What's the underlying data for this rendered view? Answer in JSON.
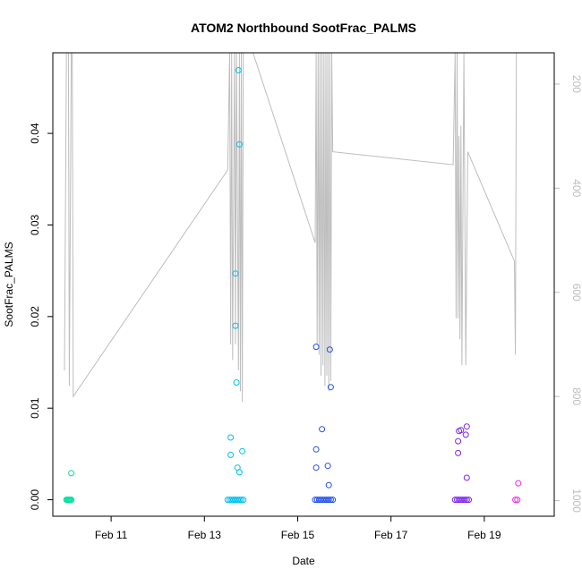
{
  "chart_data": {
    "type": "scatter",
    "title": "ATOM2 Northbound SootFrac_PALMS",
    "xlabel": "Date",
    "ylabel": "SootFrac_PALMS",
    "xlim": [
      "2017-02-09T18:00",
      "2017-02-20T12:00"
    ],
    "ylim": [
      -0.0018,
      0.0488
    ],
    "x_ticks": [
      {
        "date": "2017-02-11T00:00",
        "label": "Feb 11"
      },
      {
        "date": "2017-02-13T00:00",
        "label": "Feb 13"
      },
      {
        "date": "2017-02-15T00:00",
        "label": "Feb 15"
      },
      {
        "date": "2017-02-17T00:00",
        "label": "Feb 17"
      },
      {
        "date": "2017-02-19T00:00",
        "label": "Feb 19"
      }
    ],
    "y_ticks": [
      {
        "value": 0.0,
        "label": "0.00"
      },
      {
        "value": 0.01,
        "label": "0.01"
      },
      {
        "value": 0.02,
        "label": "0.02"
      },
      {
        "value": 0.03,
        "label": "0.03"
      },
      {
        "value": 0.04,
        "label": "0.04"
      }
    ],
    "right_axis": {
      "lim": [
        1030,
        140
      ],
      "ticks": [
        {
          "value": 200,
          "label": "200"
        },
        {
          "value": 400,
          "label": "400"
        },
        {
          "value": 600,
          "label": "600"
        },
        {
          "value": 800,
          "label": "800"
        },
        {
          "value": 1000,
          "label": "1000"
        }
      ],
      "color": "#bdbdbd"
    },
    "grid": false,
    "series": [
      {
        "color": "#00e0a0",
        "points": [
          [
            "2017-02-10T01:00",
            0.0
          ],
          [
            "2017-02-10T01:30",
            0.0
          ],
          [
            "2017-02-10T02:00",
            0.0
          ],
          [
            "2017-02-10T02:30",
            0.0
          ],
          [
            "2017-02-10T03:00",
            0.0
          ],
          [
            "2017-02-10T03:30",
            0.0
          ],
          [
            "2017-02-10T03:30",
            0.0029
          ]
        ]
      },
      {
        "color": "#00bfe8",
        "points": [
          [
            "2017-02-13T12:00",
            0.0
          ],
          [
            "2017-02-13T13:00",
            0.0
          ],
          [
            "2017-02-13T14:00",
            0.0
          ],
          [
            "2017-02-13T15:00",
            0.0
          ],
          [
            "2017-02-13T16:00",
            0.0
          ],
          [
            "2017-02-13T17:00",
            0.0
          ],
          [
            "2017-02-13T18:00",
            0.0
          ],
          [
            "2017-02-13T19:00",
            0.0
          ],
          [
            "2017-02-13T20:00",
            0.0
          ],
          [
            "2017-02-13T13:30",
            0.0068
          ],
          [
            "2017-02-13T13:30",
            0.0049
          ],
          [
            "2017-02-13T19:30",
            0.0053
          ],
          [
            "2017-02-13T17:00",
            0.0035
          ],
          [
            "2017-02-13T18:00",
            0.003
          ],
          [
            "2017-02-13T16:30",
            0.0128
          ],
          [
            "2017-02-13T16:00",
            0.019
          ],
          [
            "2017-02-13T16:00",
            0.0247
          ],
          [
            "2017-02-13T18:00",
            0.0388
          ],
          [
            "2017-02-13T17:30",
            0.0469
          ]
        ]
      },
      {
        "color": "#2050e8",
        "points": [
          [
            "2017-02-15T09:00",
            0.0
          ],
          [
            "2017-02-15T10:00",
            0.0
          ],
          [
            "2017-02-15T11:00",
            0.0
          ],
          [
            "2017-02-15T12:00",
            0.0
          ],
          [
            "2017-02-15T13:00",
            0.0
          ],
          [
            "2017-02-15T14:00",
            0.0
          ],
          [
            "2017-02-15T15:00",
            0.0
          ],
          [
            "2017-02-15T16:00",
            0.0
          ],
          [
            "2017-02-15T17:00",
            0.0
          ],
          [
            "2017-02-15T18:00",
            0.0
          ],
          [
            "2017-02-15T09:30",
            0.0167
          ],
          [
            "2017-02-15T16:30",
            0.0164
          ],
          [
            "2017-02-15T17:00",
            0.0123
          ],
          [
            "2017-02-15T12:30",
            0.0077
          ],
          [
            "2017-02-15T09:30",
            0.0055
          ],
          [
            "2017-02-15T09:30",
            0.0035
          ],
          [
            "2017-02-15T15:30",
            0.0037
          ],
          [
            "2017-02-15T16:00",
            0.0016
          ]
        ]
      },
      {
        "color": "#7a28e8",
        "points": [
          [
            "2017-02-18T09:00",
            0.0
          ],
          [
            "2017-02-18T10:00",
            0.0
          ],
          [
            "2017-02-18T11:00",
            0.0
          ],
          [
            "2017-02-18T12:00",
            0.0
          ],
          [
            "2017-02-18T13:00",
            0.0
          ],
          [
            "2017-02-18T14:00",
            0.0
          ],
          [
            "2017-02-18T15:00",
            0.0
          ],
          [
            "2017-02-18T16:00",
            0.0
          ],
          [
            "2017-02-18T11:00",
            0.0075
          ],
          [
            "2017-02-18T12:00",
            0.0076
          ],
          [
            "2017-02-18T15:00",
            0.008
          ],
          [
            "2017-02-18T14:30",
            0.0071
          ],
          [
            "2017-02-18T10:30",
            0.0064
          ],
          [
            "2017-02-18T10:30",
            0.0051
          ],
          [
            "2017-02-18T15:00",
            0.0024
          ]
        ]
      },
      {
        "color": "#e830e0",
        "points": [
          [
            "2017-02-19T16:00",
            0.0
          ],
          [
            "2017-02-19T17:00",
            0.0
          ],
          [
            "2017-02-19T17:30",
            0.0018
          ]
        ]
      }
    ],
    "secondary_line": {
      "color": "#bdbdbd",
      "axis": "right",
      "points": [
        [
          "2017-02-10T00:00",
          750
        ],
        [
          "2017-02-10T01:00",
          140
        ],
        [
          "2017-02-10T02:00",
          140
        ],
        [
          "2017-02-10T02:30",
          780
        ],
        [
          "2017-02-10T03:30",
          140
        ],
        [
          "2017-02-10T04:00",
          140
        ],
        [
          "2017-02-10T04:30",
          800
        ],
        [
          "2017-02-13T12:00",
          365
        ],
        [
          "2017-02-13T13:00",
          140
        ],
        [
          "2017-02-13T13:30",
          700
        ],
        [
          "2017-02-13T14:00",
          140
        ],
        [
          "2017-02-13T14:30",
          730
        ],
        [
          "2017-02-13T15:30",
          140
        ],
        [
          "2017-02-13T16:00",
          700
        ],
        [
          "2017-02-13T16:30",
          140
        ],
        [
          "2017-02-13T17:30",
          750
        ],
        [
          "2017-02-13T18:00",
          140
        ],
        [
          "2017-02-13T18:30",
          790
        ],
        [
          "2017-02-13T19:00",
          140
        ],
        [
          "2017-02-13T19:30",
          810
        ],
        [
          "2017-02-13T20:00",
          140
        ],
        [
          "2017-02-14T01:00",
          140
        ],
        [
          "2017-02-15T09:00",
          505
        ],
        [
          "2017-02-15T09:30",
          140
        ],
        [
          "2017-02-15T10:00",
          700
        ],
        [
          "2017-02-15T10:30",
          140
        ],
        [
          "2017-02-15T11:00",
          720
        ],
        [
          "2017-02-15T11:30",
          140
        ],
        [
          "2017-02-15T12:00",
          760
        ],
        [
          "2017-02-15T12:30",
          140
        ],
        [
          "2017-02-15T13:00",
          740
        ],
        [
          "2017-02-15T13:30",
          140
        ],
        [
          "2017-02-15T14:00",
          780
        ],
        [
          "2017-02-15T14:30",
          140
        ],
        [
          "2017-02-15T15:00",
          760
        ],
        [
          "2017-02-15T15:30",
          140
        ],
        [
          "2017-02-15T16:00",
          790
        ],
        [
          "2017-02-15T16:30",
          140
        ],
        [
          "2017-02-15T17:00",
          770
        ],
        [
          "2017-02-15T17:30",
          140
        ],
        [
          "2017-02-15T18:00",
          330
        ],
        [
          "2017-02-18T08:00",
          355
        ],
        [
          "2017-02-18T09:00",
          140
        ],
        [
          "2017-02-18T09:30",
          650
        ],
        [
          "2017-02-18T10:00",
          140
        ],
        [
          "2017-02-18T10:30",
          650
        ],
        [
          "2017-02-18T11:00",
          300
        ],
        [
          "2017-02-18T11:30",
          690
        ],
        [
          "2017-02-18T12:00",
          280
        ],
        [
          "2017-02-18T12:30",
          740
        ],
        [
          "2017-02-18T13:30",
          140
        ],
        [
          "2017-02-18T14:30",
          740
        ],
        [
          "2017-02-18T15:30",
          330
        ],
        [
          "2017-02-19T15:30",
          540
        ],
        [
          "2017-02-19T16:00",
          720
        ],
        [
          "2017-02-19T16:30",
          140
        ]
      ]
    }
  }
}
